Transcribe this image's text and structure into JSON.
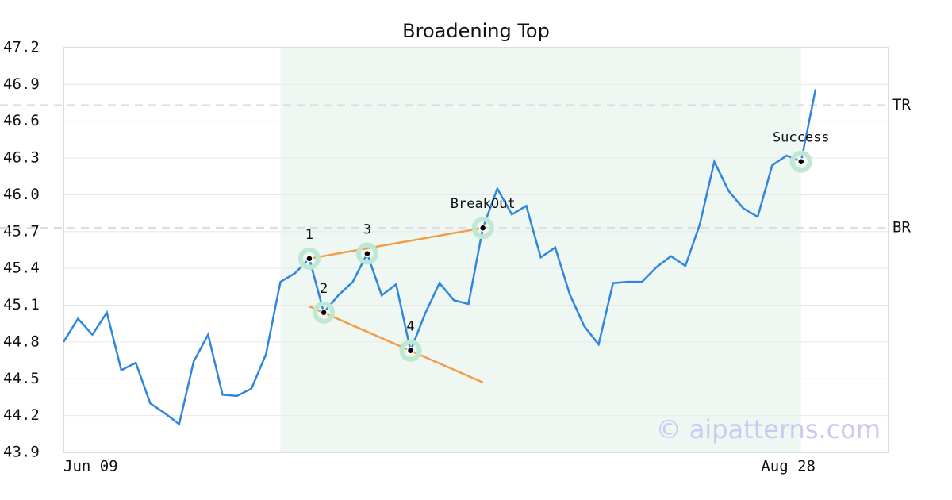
{
  "chart_data": {
    "type": "line",
    "title": "Broadening Top",
    "categories": [
      "Jun 09",
      null,
      null,
      null,
      null,
      null,
      null,
      null,
      null,
      null,
      null,
      null,
      null,
      null,
      null,
      null,
      null,
      null,
      null,
      null,
      null,
      null,
      null,
      null,
      null,
      null,
      null,
      null,
      null,
      null,
      null,
      null,
      null,
      null,
      null,
      null,
      null,
      null,
      null,
      null,
      null,
      null,
      null,
      null,
      null,
      null,
      null,
      null,
      null,
      null,
      null,
      null,
      "Aug 28"
    ],
    "series": [
      {
        "color": "#2e86de",
        "values": [
          44.8,
          44.99,
          44.86,
          45.04,
          44.57,
          44.63,
          44.3,
          44.22,
          44.13,
          44.64,
          44.86,
          44.37,
          44.36,
          44.42,
          44.7,
          45.29,
          45.36,
          45.48,
          45.04,
          45.18,
          45.29,
          45.52,
          45.18,
          45.27,
          44.73,
          45.03,
          45.28,
          45.14,
          45.11,
          45.73,
          46.05,
          45.84,
          45.91,
          45.49,
          45.57,
          45.19,
          44.93,
          44.78,
          45.28,
          45.29,
          45.29,
          45.41,
          45.5,
          45.42,
          45.76,
          46.27,
          46.03,
          45.89,
          45.82,
          46.24,
          46.32,
          46.27,
          46.86
        ]
      }
    ],
    "ylim": [
      43.9,
      47.2
    ],
    "yticks": [
      43.9,
      44.2,
      44.5,
      44.8,
      45.1,
      45.4,
      45.7,
      {
        "value": 46.0,
        "label": "46.0"
      },
      46.3,
      46.6,
      46.9,
      47.2
    ],
    "grid": true,
    "highlight_range": {
      "start": 15,
      "end": 51,
      "color": "#eef7f2"
    },
    "levels": [
      {
        "label": "TR",
        "value": 46.73
      },
      {
        "label": "BR",
        "value": 45.73
      }
    ],
    "trendlines": [
      {
        "color": "#f39c45",
        "start": {
          "index": 17,
          "value": 45.48
        },
        "end": {
          "index": 29,
          "value": 45.73
        }
      },
      {
        "color": "#f39c45",
        "start": {
          "index": 17,
          "value": 45.09
        },
        "end": {
          "index": 29,
          "value": 44.47
        }
      }
    ],
    "annotations": [
      {
        "label": "1",
        "index": 17,
        "value": 45.48
      },
      {
        "label": "2",
        "index": 18,
        "value": 45.04
      },
      {
        "label": "3",
        "index": 21,
        "value": 45.52
      },
      {
        "label": "4",
        "index": 24,
        "value": 44.73
      },
      {
        "label": "BreakOut",
        "index": 29,
        "value": 45.73
      },
      {
        "label": "Success",
        "index": 51,
        "value": 46.27
      }
    ],
    "watermark": "© aipatterns.com"
  }
}
